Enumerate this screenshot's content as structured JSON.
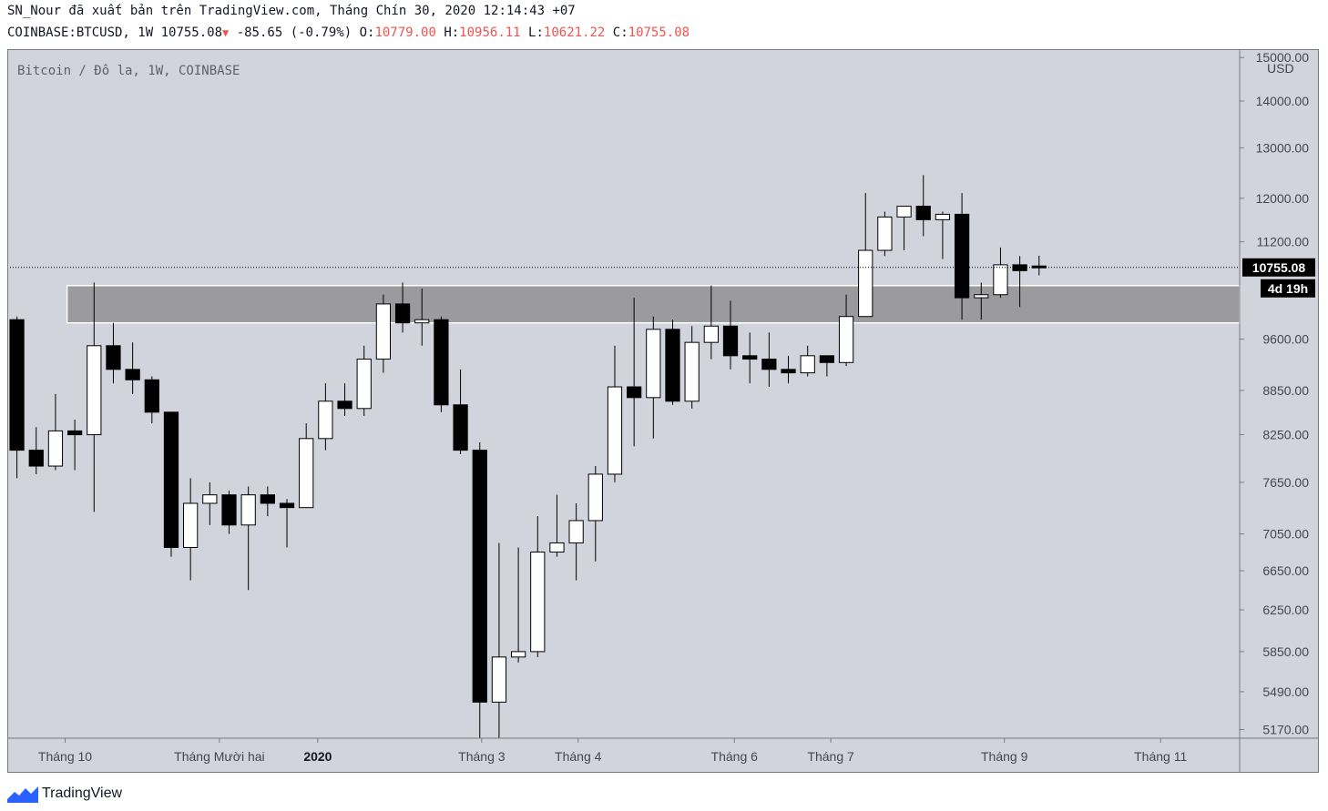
{
  "header": {
    "published_line": "SN_Nour đã xuất bản trên TradingView.com, Tháng Chín 30, 2020 12:14:43 +07",
    "symbol": "COINBASE:BTCUSD, 1W",
    "last": "10755.08",
    "change": "-85.65 (-0.79%)",
    "o_label": "O:",
    "o_value": "10779.00",
    "h_label": "H:",
    "h_value": "10956.11",
    "l_label": "L:",
    "l_value": "10621.22",
    "c_label": "C:",
    "c_value": "10755.08"
  },
  "footer": {
    "brand": "TradingView",
    "logo_icon": "tradingview-logo-icon"
  },
  "colors": {
    "background": "#d1d4dc",
    "zone": "#9b9b9e",
    "up_body": "#ffffff",
    "down_body": "#000000",
    "wick": "#000000",
    "price_tag": "#000000"
  },
  "chart_data": {
    "type": "candlestick",
    "legend": "Bitcoin / Đô la, 1W, COINBASE",
    "currency": "USD",
    "y_ticks": [
      "15000.00",
      "14000.00",
      "13000.00",
      "12000.00",
      "11200.00",
      "9600.00",
      "8850.00",
      "8250.00",
      "7650.00",
      "7050.00",
      "6650.00",
      "6250.00",
      "5850.00",
      "5490.00",
      "5170.00"
    ],
    "y_tick_values": [
      15000,
      14000,
      13000,
      12000,
      11200,
      9600,
      8850,
      8250,
      7650,
      7050,
      6650,
      6250,
      5850,
      5490,
      5170
    ],
    "y_scale": "log",
    "y_range": [
      5100,
      15200
    ],
    "current_price": "10755.08",
    "current_price_value": 10755.08,
    "countdown": "4d 19h",
    "x_labels": [
      {
        "text": "Tháng 10",
        "week": 2.5,
        "bold": false
      },
      {
        "text": "Tháng Mười hai",
        "week": 10.5,
        "bold": false
      },
      {
        "text": "2020",
        "week": 15.6,
        "bold": true
      },
      {
        "text": "Tháng 3",
        "week": 24.1,
        "bold": false
      },
      {
        "text": "Tháng 4",
        "week": 29.1,
        "bold": false
      },
      {
        "text": "Tháng 6",
        "week": 37.2,
        "bold": false
      },
      {
        "text": "Tháng 7",
        "week": 42.2,
        "bold": false
      },
      {
        "text": "Tháng 9",
        "week": 51.2,
        "bold": false
      },
      {
        "text": "Tháng 11",
        "week": 59.3,
        "bold": false
      }
    ],
    "x_range": [
      -0.5,
      63.4
    ],
    "zone": {
      "from_week": 2.6,
      "to_week": 63.4,
      "low": 9850,
      "high": 10450
    },
    "candles": [
      {
        "o": 9900,
        "h": 9950,
        "l": 7700,
        "c": 8050
      },
      {
        "o": 8050,
        "h": 8350,
        "l": 7750,
        "c": 7850
      },
      {
        "o": 7850,
        "h": 8800,
        "l": 7800,
        "c": 8300
      },
      {
        "o": 8300,
        "h": 8450,
        "l": 7800,
        "c": 8250
      },
      {
        "o": 8250,
        "h": 10500,
        "l": 7300,
        "c": 9500
      },
      {
        "o": 9500,
        "h": 9850,
        "l": 8950,
        "c": 9150
      },
      {
        "o": 9150,
        "h": 9550,
        "l": 8800,
        "c": 9000
      },
      {
        "o": 9000,
        "h": 9050,
        "l": 8400,
        "c": 8550
      },
      {
        "o": 8550,
        "h": 8550,
        "l": 6800,
        "c": 6900
      },
      {
        "o": 6900,
        "h": 7700,
        "l": 6550,
        "c": 7400
      },
      {
        "o": 7400,
        "h": 7650,
        "l": 7150,
        "c": 7500
      },
      {
        "o": 7500,
        "h": 7550,
        "l": 7050,
        "c": 7150
      },
      {
        "o": 7150,
        "h": 7600,
        "l": 6450,
        "c": 7500
      },
      {
        "o": 7500,
        "h": 7600,
        "l": 7250,
        "c": 7400
      },
      {
        "o": 7400,
        "h": 7450,
        "l": 6900,
        "c": 7350
      },
      {
        "o": 7350,
        "h": 8400,
        "l": 7350,
        "c": 8200
      },
      {
        "o": 8200,
        "h": 8950,
        "l": 8050,
        "c": 8700
      },
      {
        "o": 8700,
        "h": 8950,
        "l": 8500,
        "c": 8600
      },
      {
        "o": 8600,
        "h": 9500,
        "l": 8500,
        "c": 9300
      },
      {
        "o": 9300,
        "h": 10300,
        "l": 9100,
        "c": 10150
      },
      {
        "o": 10150,
        "h": 10500,
        "l": 9700,
        "c": 9850
      },
      {
        "o": 9850,
        "h": 10400,
        "l": 9500,
        "c": 9900
      },
      {
        "o": 9900,
        "h": 9950,
        "l": 8550,
        "c": 8650
      },
      {
        "o": 8650,
        "h": 9150,
        "l": 8000,
        "c": 8050
      },
      {
        "o": 8050,
        "h": 8150,
        "l": 5100,
        "c": 5400
      },
      {
        "o": 5400,
        "h": 6950,
        "l": 5100,
        "c": 5800
      },
      {
        "o": 5800,
        "h": 6900,
        "l": 5750,
        "c": 5850
      },
      {
        "o": 5850,
        "h": 7250,
        "l": 5800,
        "c": 6850
      },
      {
        "o": 6850,
        "h": 7500,
        "l": 6800,
        "c": 6950
      },
      {
        "o": 6950,
        "h": 7400,
        "l": 6550,
        "c": 7200
      },
      {
        "o": 7200,
        "h": 7850,
        "l": 6750,
        "c": 7750
      },
      {
        "o": 7750,
        "h": 9500,
        "l": 7650,
        "c": 8900
      },
      {
        "o": 8900,
        "h": 10250,
        "l": 8100,
        "c": 8750
      },
      {
        "o": 8750,
        "h": 9950,
        "l": 8200,
        "c": 9750
      },
      {
        "o": 9750,
        "h": 9900,
        "l": 8650,
        "c": 8700
      },
      {
        "o": 8700,
        "h": 9800,
        "l": 8600,
        "c": 9550
      },
      {
        "o": 9550,
        "h": 10450,
        "l": 9300,
        "c": 9800
      },
      {
        "o": 9800,
        "h": 10200,
        "l": 9150,
        "c": 9350
      },
      {
        "o": 9350,
        "h": 9700,
        "l": 8950,
        "c": 9300
      },
      {
        "o": 9300,
        "h": 9700,
        "l": 8900,
        "c": 9150
      },
      {
        "o": 9150,
        "h": 9350,
        "l": 8950,
        "c": 9100
      },
      {
        "o": 9100,
        "h": 9500,
        "l": 9050,
        "c": 9350
      },
      {
        "o": 9350,
        "h": 9350,
        "l": 9050,
        "c": 9250
      },
      {
        "o": 9250,
        "h": 10300,
        "l": 9200,
        "c": 9950
      },
      {
        "o": 9950,
        "h": 12100,
        "l": 9950,
        "c": 11050
      },
      {
        "o": 11050,
        "h": 11750,
        "l": 10950,
        "c": 11650
      },
      {
        "o": 11650,
        "h": 11850,
        "l": 11050,
        "c": 11850
      },
      {
        "o": 11850,
        "h": 12450,
        "l": 11300,
        "c": 11600
      },
      {
        "o": 11600,
        "h": 11750,
        "l": 10900,
        "c": 11700
      },
      {
        "o": 11700,
        "h": 12100,
        "l": 9900,
        "c": 10250
      },
      {
        "o": 10250,
        "h": 10500,
        "l": 9900,
        "c": 10300
      },
      {
        "o": 10300,
        "h": 11100,
        "l": 10250,
        "c": 10800
      },
      {
        "o": 10800,
        "h": 10950,
        "l": 10100,
        "c": 10700
      },
      {
        "o": 10779,
        "h": 10956.11,
        "l": 10621.22,
        "c": 10755.08
      }
    ]
  }
}
